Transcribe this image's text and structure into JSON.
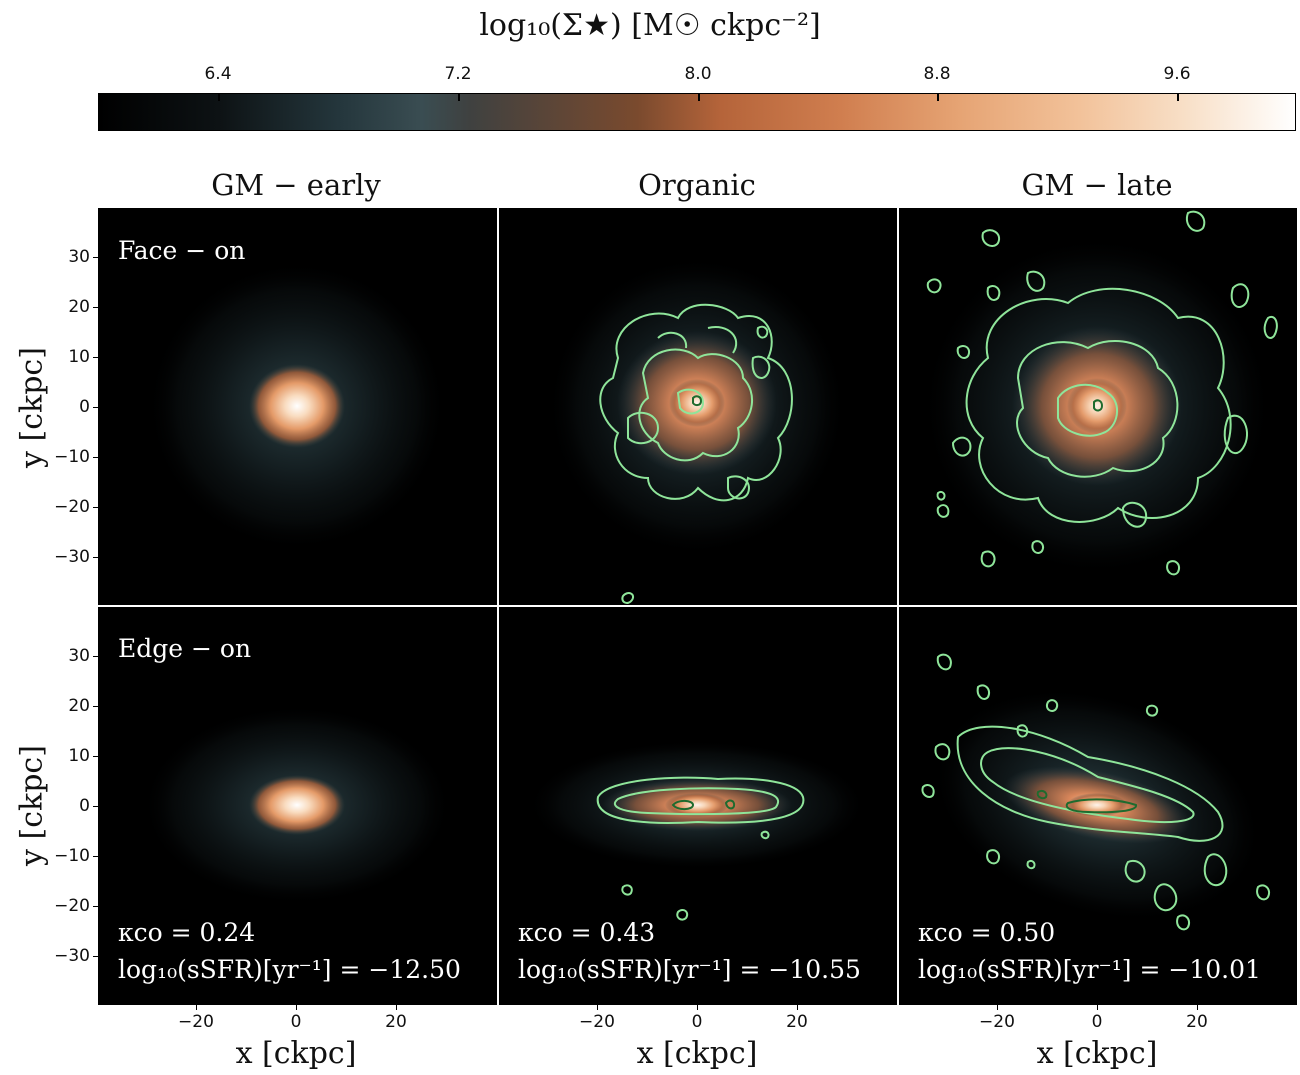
{
  "colorbar": {
    "title": "log₁₀(Σ★) [M☉ ckpc⁻²]",
    "ticks": [
      "6.4",
      "7.2",
      "8.0",
      "8.8",
      "9.6"
    ]
  },
  "columns": [
    {
      "title": "GM − early",
      "kappa": "κco = 0.24",
      "ssfr": "log₁₀(sSFR)[yr⁻¹] = −12.50"
    },
    {
      "title": "Organic",
      "kappa": "κco = 0.43",
      "ssfr": "log₁₀(sSFR)[yr⁻¹] = −10.55"
    },
    {
      "title": "GM − late",
      "kappa": "κco = 0.50",
      "ssfr": "log₁₀(sSFR)[yr⁻¹] = −10.01"
    }
  ],
  "rows": [
    {
      "label": "Face − on"
    },
    {
      "label": "Edge − on"
    }
  ],
  "axes": {
    "ylabel": "y [ckpc]",
    "xlabel": "x [ckpc]",
    "yticks": [
      "30",
      "20",
      "10",
      "0",
      "−10",
      "−20",
      "−30"
    ],
    "xticks": [
      "−20",
      "0",
      "20"
    ]
  }
}
